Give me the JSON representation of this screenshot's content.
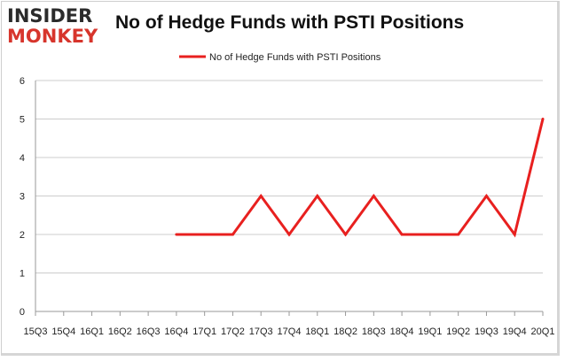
{
  "logo": {
    "line1": "INSIDER",
    "line2": "MONKEY"
  },
  "title": "No of Hedge Funds with PSTI Positions",
  "colors": {
    "series": "#e8201f",
    "grid": "#cccccc",
    "axis": "#999999",
    "logo_red": "#d7352c"
  },
  "chart_data": {
    "type": "line",
    "title": "No of Hedge Funds with PSTI Positions",
    "xlabel": "",
    "ylabel": "",
    "ylim": [
      0,
      6
    ],
    "yticks": [
      "0",
      "1",
      "2",
      "3",
      "4",
      "5",
      "6"
    ],
    "x_tick_labels": [
      "15Q3",
      "15Q4",
      "16Q1",
      "16Q2",
      "16Q3",
      "16Q4",
      "17Q1",
      "17Q2",
      "17Q3",
      "17Q4",
      "18Q1",
      "18Q2",
      "18Q3",
      "18Q4",
      "19Q1",
      "19Q2",
      "19Q3",
      "19Q4",
      "20Q1"
    ],
    "grid": true,
    "legend_position": "top-center",
    "series": [
      {
        "name": "No of Hedge Funds with PSTI Positions",
        "color": "#e8201f",
        "x": [
          "15Q3",
          "15Q4",
          "16Q1",
          "16Q2",
          "16Q3",
          "16Q4",
          "17Q1",
          "17Q2",
          "17Q3",
          "17Q4",
          "18Q1",
          "18Q2",
          "18Q3",
          "18Q4",
          "19Q1",
          "19Q2",
          "19Q3",
          "19Q4",
          "20Q1"
        ],
        "values": [
          null,
          null,
          null,
          null,
          null,
          2,
          2,
          2,
          3,
          2,
          3,
          2,
          3,
          2,
          2,
          2,
          3,
          2,
          5
        ]
      }
    ]
  }
}
